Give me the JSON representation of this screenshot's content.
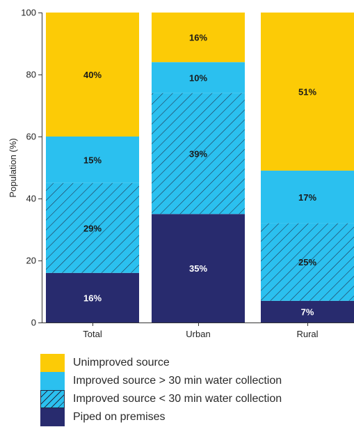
{
  "chart_data": {
    "type": "bar",
    "stacked": true,
    "categories": [
      "Total",
      "Urban",
      "Rural"
    ],
    "ylabel": "Population (%)",
    "ylim": [
      0,
      100
    ],
    "yticks": [
      "0",
      "20",
      "40",
      "60",
      "80",
      "100"
    ],
    "grid": false,
    "legend_position": "bottom",
    "series": [
      {
        "name": "Piped on premises",
        "values": [
          16,
          35,
          7
        ],
        "labels": [
          "16%",
          "35%",
          "7%"
        ],
        "color": "#282b6e",
        "label_color": "#ffffff",
        "hatched": false
      },
      {
        "name": "Improved source < 30 min water collection",
        "values": [
          29,
          39,
          25
        ],
        "labels": [
          "29%",
          "39%",
          "25%"
        ],
        "color": "#2bc0ef",
        "label_color": "#1a1a1a",
        "hatched": true
      },
      {
        "name": "Improved source > 30 min water collection",
        "values": [
          15,
          10,
          17
        ],
        "labels": [
          "15%",
          "10%",
          "17%"
        ],
        "color": "#2bc0ef",
        "label_color": "#1a1a1a",
        "hatched": false
      },
      {
        "name": "Unimproved source",
        "values": [
          40,
          16,
          51
        ],
        "labels": [
          "40%",
          "16%",
          "51%"
        ],
        "color": "#fccb06",
        "label_color": "#1a1a1a",
        "hatched": false
      }
    ]
  },
  "legend": {
    "items": [
      {
        "label": "Unimproved source",
        "color": "#fccb06",
        "hatched": false
      },
      {
        "label": "Improved source > 30 min water collection",
        "color": "#2bc0ef",
        "hatched": false
      },
      {
        "label": "Improved source < 30 min water collection",
        "color": "#2bc0ef",
        "hatched": true
      },
      {
        "label": "Piped on premises",
        "color": "#282b6e",
        "hatched": false
      }
    ]
  },
  "colors": {
    "axis": "#333333",
    "hatch_line": "#1f2a44"
  }
}
